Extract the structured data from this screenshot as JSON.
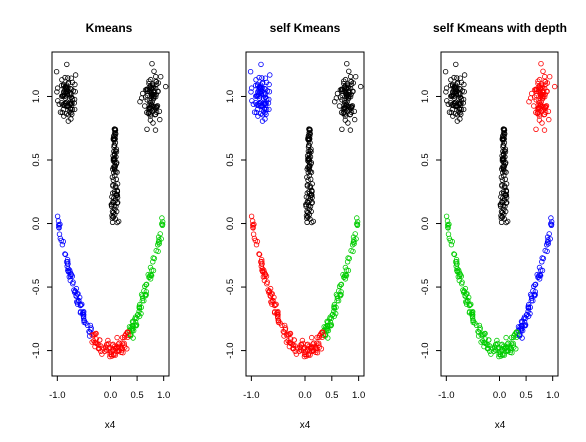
{
  "chart_data": [
    {
      "type": "scatter",
      "title": "Kmeans",
      "xlabel": "x4",
      "ylabel": "",
      "xlim": [
        -1.1,
        1.1
      ],
      "ylim": [
        -1.2,
        1.35
      ],
      "xticks": [
        "-1.0",
        "0.0",
        "0.5",
        "1.0"
      ],
      "yticks": [
        "-1.0",
        "-0.5",
        "0.0",
        "0.5",
        "1.0"
      ],
      "grid": false,
      "legend": "none",
      "assignment": {
        "eyeLeft": "#000000",
        "eyeRight": "#000000",
        "nose": "#000000",
        "mouthLeft": "#0000ff",
        "mouthMid": "#ff0000",
        "mouthRight": "#00cc00"
      }
    },
    {
      "type": "scatter",
      "title": "self Kmeans",
      "xlabel": "x4",
      "ylabel": "",
      "xlim": [
        -1.1,
        1.1
      ],
      "ylim": [
        -1.2,
        1.35
      ],
      "xticks": [
        "-1.0",
        "0.0",
        "0.5",
        "1.0"
      ],
      "yticks": [
        "-1.0",
        "-0.5",
        "0.0",
        "0.5",
        "1.0"
      ],
      "grid": false,
      "legend": "none",
      "assignment": {
        "eyeLeft": "#0000ff",
        "eyeRight": "#000000",
        "nose": "#000000",
        "mouthLeft": "#ff0000",
        "mouthMid": "#ff0000",
        "mouthRight": "#00cc00"
      }
    },
    {
      "type": "scatter",
      "title": "self Kmeans with depth",
      "xlabel": "x4",
      "ylabel": "",
      "xlim": [
        -1.1,
        1.1
      ],
      "ylim": [
        -1.2,
        1.35
      ],
      "xticks": [
        "-1.0",
        "0.0",
        "0.5",
        "1.0"
      ],
      "yticks": [
        "-1.0",
        "-0.5",
        "0.0",
        "0.5",
        "1.0"
      ],
      "grid": false,
      "legend": "none",
      "assignment": {
        "eyeLeft": "#000000",
        "eyeRight": "#ff0000",
        "nose": "#000000",
        "mouthLeft": "#00cc00",
        "mouthMid": "#00cc00",
        "mouthRight": "#0000ff"
      }
    }
  ],
  "clusters": {
    "eyeLeft": {
      "cx": -0.82,
      "cy": 1.0,
      "sx": 0.08,
      "sy": 0.1,
      "n": 90
    },
    "eyeRight": {
      "cx": 0.78,
      "cy": 1.0,
      "sx": 0.08,
      "sy": 0.1,
      "n": 90
    },
    "nose": {
      "xmin": -0.02,
      "xmax": 0.18,
      "ymin": 0.0,
      "ymax": 0.75,
      "n": 100
    },
    "mouth": {
      "xmin": -1.0,
      "xmax": 1.0,
      "bottom": -1.0,
      "top": 0.05,
      "spread": 0.035,
      "n": 230,
      "leftSplit": -0.35,
      "rightSplit": 0.35
    }
  }
}
